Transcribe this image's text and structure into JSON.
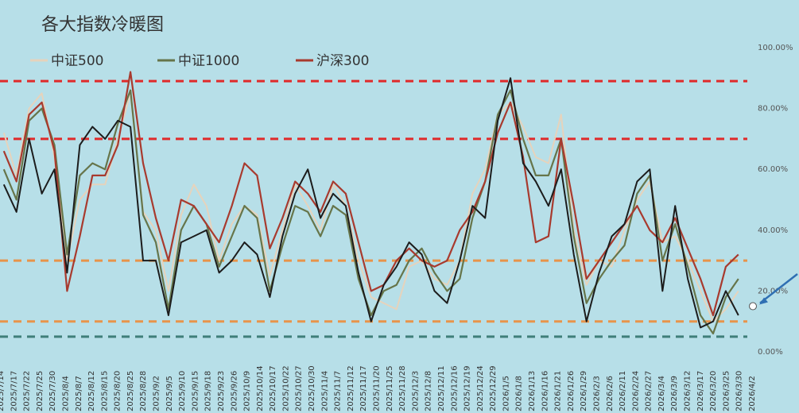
{
  "chart_data": {
    "type": "line",
    "title": "各大指数冷暖图",
    "xlabel": "",
    "ylabel": "",
    "ylim": [
      0,
      100
    ],
    "yticks": [
      "0.00%",
      "20.00%",
      "40.00%",
      "60.00%",
      "80.00%",
      "100.00%"
    ],
    "grid": false,
    "legend_position": "top-left",
    "categories": [
      "2025/7/14",
      "2025/7/17",
      "2025/7/22",
      "2025/7/25",
      "2025/7/30",
      "2025/8/4",
      "2025/8/7",
      "2025/8/12",
      "2025/8/15",
      "2025/8/20",
      "2025/8/25",
      "2025/8/28",
      "2025/9/2",
      "2025/9/5",
      "2025/9/10",
      "2025/9/15",
      "2025/9/18",
      "2025/9/23",
      "2025/9/26",
      "2025/10/9",
      "2025/10/14",
      "2025/10/17",
      "2025/10/22",
      "2025/10/27",
      "2025/10/30",
      "2025/11/4",
      "2025/11/7",
      "2025/11/12",
      "2025/11/17",
      "2025/11/20",
      "2025/11/25",
      "2025/11/28",
      "2025/12/3",
      "2025/12/8",
      "2025/12/11",
      "2025/12/16",
      "2025/12/19",
      "2025/12/24",
      "2025/12/29",
      "2026/1/5",
      "2026/1/8",
      "2026/1/13",
      "2026/1/16",
      "2026/1/21",
      "2026/1/26",
      "2026/1/29",
      "2026/2/3",
      "2026/2/6",
      "2026/2/11",
      "2026/2/24",
      "2026/2/27",
      "2026/3/4",
      "2026/3/9",
      "2026/3/12",
      "2026/3/17",
      "2026/3/20",
      "2026/3/25",
      "2026/3/30",
      "2026/4/2"
    ],
    "series": [
      {
        "name": "中证500",
        "color": "#e6d3bc",
        "width": 2.0,
        "values": [
          72,
          58,
          80,
          85,
          64,
          30,
          50,
          55,
          55,
          70,
          85,
          46,
          40,
          20,
          45,
          55,
          48,
          30,
          42,
          48,
          45,
          25,
          40,
          55,
          48,
          40,
          55,
          48,
          30,
          18,
          16,
          14,
          28,
          30,
          24,
          22,
          30,
          52,
          60,
          78,
          82,
          74,
          64,
          62,
          78,
          40,
          22,
          30,
          28,
          40,
          50,
          56,
          36,
          38,
          30,
          20,
          10,
          14,
          20
        ]
      },
      {
        "name": "中证1000",
        "color": "#66754a",
        "width": 2.2,
        "values": [
          60,
          50,
          76,
          80,
          68,
          32,
          58,
          62,
          60,
          75,
          86,
          45,
          36,
          14,
          40,
          48,
          42,
          28,
          38,
          48,
          44,
          20,
          35,
          48,
          46,
          38,
          48,
          45,
          24,
          12,
          20,
          22,
          30,
          34,
          26,
          20,
          24,
          44,
          56,
          78,
          86,
          70,
          58,
          58,
          70,
          38,
          16,
          24,
          30,
          35,
          52,
          58,
          30,
          42,
          28,
          12,
          6,
          18,
          24
        ]
      },
      {
        "name": "沪深300",
        "color": "#a83a2e",
        "width": 2.2,
        "values": [
          66,
          56,
          78,
          82,
          66,
          20,
          38,
          58,
          58,
          68,
          92,
          62,
          44,
          30,
          50,
          48,
          42,
          36,
          48,
          62,
          58,
          34,
          44,
          56,
          52,
          46,
          56,
          52,
          36,
          20,
          22,
          30,
          34,
          30,
          28,
          30,
          40,
          46,
          56,
          72,
          82,
          64,
          36,
          38,
          70,
          48,
          24,
          30,
          36,
          42,
          48,
          40,
          36,
          44,
          34,
          24,
          12,
          28,
          32
        ]
      },
      {
        "name": "",
        "color": "#1c1c1c",
        "width": 2.0,
        "values": [
          55,
          46,
          70,
          52,
          60,
          26,
          68,
          74,
          70,
          76,
          74,
          30,
          30,
          12,
          36,
          38,
          40,
          26,
          30,
          36,
          32,
          18,
          38,
          52,
          60,
          44,
          52,
          48,
          26,
          10,
          22,
          28,
          36,
          32,
          20,
          16,
          30,
          48,
          44,
          76,
          90,
          62,
          56,
          48,
          60,
          32,
          10,
          26,
          38,
          42,
          56,
          60,
          20,
          48,
          24,
          8,
          10,
          20,
          12
        ]
      }
    ],
    "reference_lines": [
      {
        "value": 89,
        "color": "#e02a2a",
        "style": "dashed"
      },
      {
        "value": 70,
        "color": "#e02a2a",
        "style": "dashed"
      },
      {
        "value": 30,
        "color": "#e8944a",
        "style": "dashed"
      },
      {
        "value": 10,
        "color": "#e8944a",
        "style": "dashed"
      },
      {
        "value": 5,
        "color": "#3f7f7a",
        "style": "dashed"
      }
    ],
    "marker": {
      "index": 58,
      "value": 15,
      "color": "#ffffff"
    },
    "arrow_color": "#2f6fb3",
    "background": "#b7dfe8"
  }
}
